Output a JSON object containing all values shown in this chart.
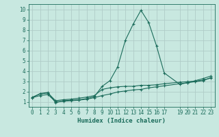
{
  "title": "",
  "xlabel": "Humidex (Indice chaleur)",
  "ylabel": "",
  "background_color": "#c8e8e0",
  "grid_color": "#b0ccc8",
  "line_color": "#1a6b5a",
  "xlim": [
    -0.5,
    23.5
  ],
  "ylim": [
    0.5,
    10.5
  ],
  "xtick_positions": [
    0,
    1,
    2,
    3,
    4,
    5,
    6,
    7,
    8,
    9,
    10,
    11,
    12,
    13,
    14,
    15,
    16,
    17,
    19,
    20,
    21,
    22,
    23
  ],
  "xtick_labels": [
    "0",
    "1",
    "2",
    "3",
    "4",
    "5",
    "6",
    "7",
    "8",
    "9",
    "10",
    "11",
    "12",
    "13",
    "14",
    "15",
    "16",
    "17",
    "19",
    "20",
    "21",
    "22",
    "23"
  ],
  "yticks": [
    1,
    2,
    3,
    4,
    5,
    6,
    7,
    8,
    9,
    10
  ],
  "line1_x": [
    0,
    1,
    2,
    3,
    4,
    5,
    6,
    7,
    8,
    9,
    10,
    11,
    12,
    13,
    14,
    15,
    16,
    17,
    19,
    20,
    21,
    22,
    23
  ],
  "line1_y": [
    1.4,
    1.8,
    1.9,
    0.9,
    1.1,
    1.15,
    1.2,
    1.3,
    1.5,
    2.5,
    3.05,
    4.4,
    7.0,
    8.55,
    9.9,
    8.7,
    6.45,
    3.8,
    2.7,
    2.85,
    3.05,
    3.25,
    3.5
  ],
  "line2_x": [
    0,
    1,
    2,
    3,
    4,
    5,
    6,
    7,
    8,
    9,
    10,
    11,
    12,
    13,
    14,
    15,
    16,
    17,
    19,
    20,
    21,
    22,
    23
  ],
  "line2_y": [
    1.45,
    1.75,
    1.85,
    1.1,
    1.2,
    1.25,
    1.35,
    1.45,
    1.6,
    2.2,
    2.35,
    2.45,
    2.5,
    2.5,
    2.6,
    2.6,
    2.65,
    2.75,
    2.9,
    2.95,
    3.0,
    3.1,
    3.3
  ],
  "line3_x": [
    0,
    1,
    2,
    3,
    4,
    5,
    6,
    7,
    8,
    9,
    10,
    11,
    12,
    13,
    14,
    15,
    16,
    17,
    19,
    20,
    21,
    22,
    23
  ],
  "line3_y": [
    1.4,
    1.6,
    1.7,
    1.0,
    1.05,
    1.1,
    1.15,
    1.25,
    1.4,
    1.6,
    1.75,
    1.95,
    2.05,
    2.15,
    2.2,
    2.35,
    2.45,
    2.55,
    2.75,
    2.85,
    2.95,
    3.05,
    3.35
  ]
}
